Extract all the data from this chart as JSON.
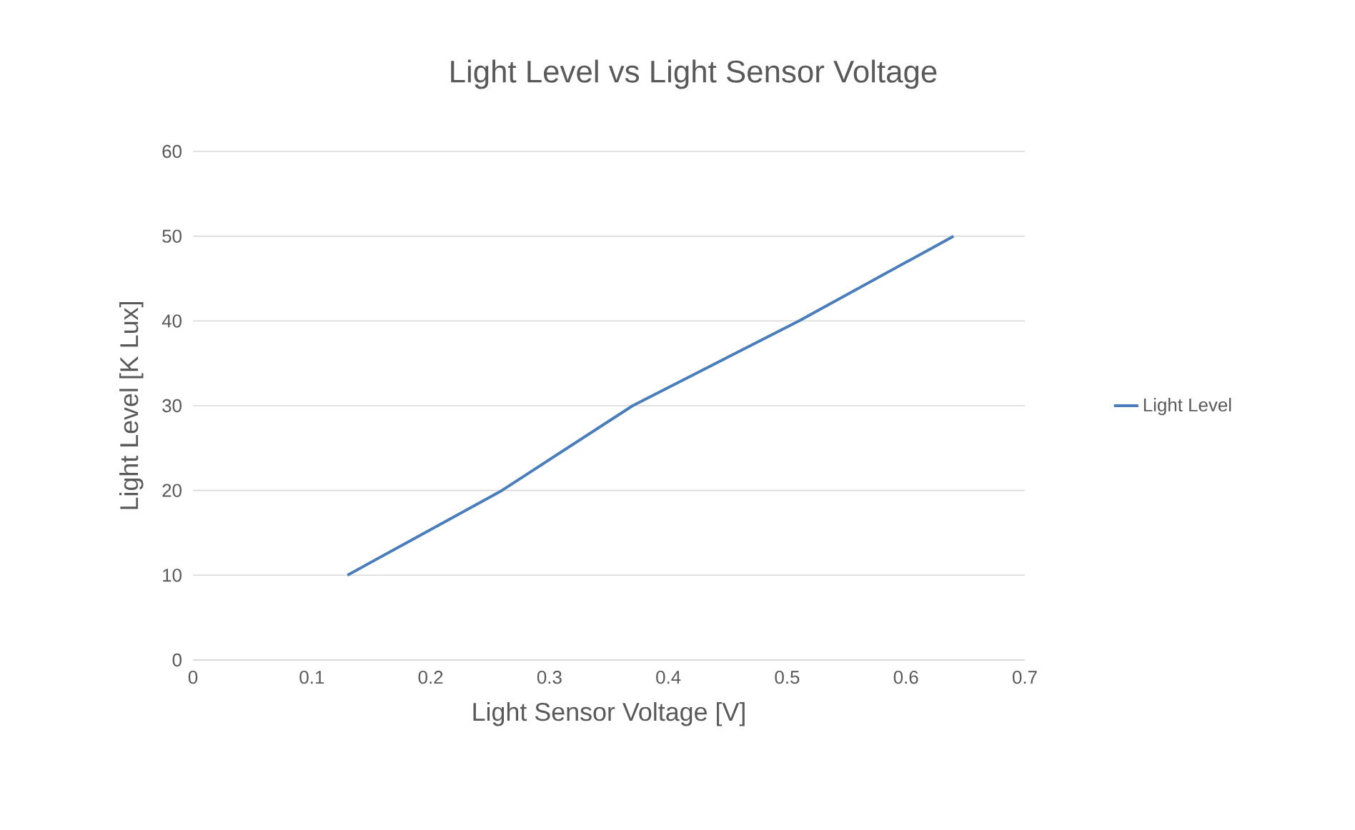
{
  "chart_data": {
    "type": "line",
    "title": "Light Level vs Light Sensor Voltage",
    "xlabel": "Light Sensor Voltage [V]",
    "ylabel": "Light Level [K Lux]",
    "series": [
      {
        "name": "Light Level",
        "color": "#4a7ebb",
        "x": [
          0.13,
          0.26,
          0.37,
          0.51,
          0.64
        ],
        "values": [
          10,
          20,
          30,
          40,
          50
        ]
      }
    ],
    "xlim": [
      0,
      0.7
    ],
    "xticks": [
      0,
      0.1,
      0.2,
      0.3,
      0.4,
      0.5,
      0.6,
      0.7
    ],
    "ylim": [
      0,
      60
    ],
    "yticks": [
      0,
      10,
      20,
      30,
      40,
      50,
      60
    ],
    "grid": "y",
    "legend": "right",
    "marker": "none",
    "line_style": "solid"
  }
}
